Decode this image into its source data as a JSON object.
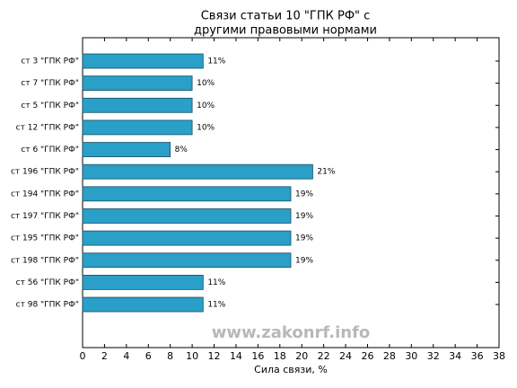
{
  "chart_data": {
    "type": "barh",
    "title": [
      "Связи статьи 10 \"ГПК РФ\" с",
      "другими правовыми нормами"
    ],
    "categories": [
      "ст 3 \"ГПК РФ\"",
      "ст 7 \"ГПК РФ\"",
      "ст 5 \"ГПК РФ\"",
      "ст 12 \"ГПК РФ\"",
      "ст 6 \"ГПК РФ\"",
      "ст 196 \"ГПК РФ\"",
      "ст 194 \"ГПК РФ\"",
      "ст 197 \"ГПК РФ\"",
      "ст 195 \"ГПК РФ\"",
      "ст 198 \"ГПК РФ\"",
      "ст 56 \"ГПК РФ\"",
      "ст 98 \"ГПК РФ\""
    ],
    "values": [
      11,
      10,
      10,
      10,
      8,
      21,
      19,
      19,
      19,
      19,
      11,
      11
    ],
    "value_labels": [
      "11%",
      "10%",
      "10%",
      "10%",
      "8%",
      "21%",
      "19%",
      "19%",
      "19%",
      "19%",
      "11%",
      "11%"
    ],
    "color": "#2a9fc7",
    "xlabel": "Сила связи, %",
    "xlim": [
      0,
      38
    ],
    "xticks": [
      0,
      2,
      4,
      6,
      8,
      10,
      12,
      14,
      16,
      18,
      20,
      22,
      24,
      26,
      28,
      30,
      32,
      34,
      36,
      38
    ],
    "watermark": "www.zakonrf.info"
  }
}
